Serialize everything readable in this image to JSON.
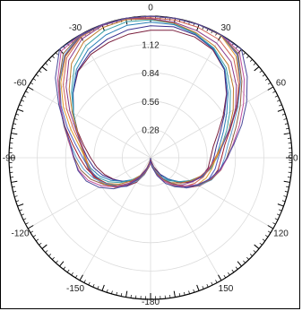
{
  "chart_data": {
    "type": "polar-line",
    "title": "",
    "angle_unit": "degrees",
    "angle_zero": "top",
    "angle_direction": "clockwise",
    "angle_tick_labels": [
      "0",
      "30",
      "60",
      "90",
      "120",
      "150",
      "-180",
      "-150",
      "-120",
      "-90",
      "-60",
      "-30"
    ],
    "angle_tick_values": [
      0,
      30,
      60,
      90,
      120,
      150,
      180,
      -150,
      -120,
      -90,
      -60,
      -30
    ],
    "r_range": [
      0,
      1.4
    ],
    "r_ticks": [
      0.28,
      0.56,
      0.84,
      1.12
    ],
    "r_tick_labels": [
      "0.28",
      "0.56",
      "0.84",
      "1.12"
    ],
    "grid": true,
    "legend": "none",
    "series_colors": [
      "#7a1f3d",
      "#3a2f8f",
      "#2a7fb8",
      "#3aa0a8",
      "#c07a2c",
      "#8a3a8a",
      "#d06050",
      "#e0a030",
      "#5060c0",
      "#a02030",
      "#60a0d0",
      "#906040",
      "#c050a0",
      "#4a4a9a"
    ],
    "series_template": {
      "angles": [
        -180,
        -170,
        -160,
        -150,
        -140,
        -130,
        -120,
        -110,
        -100,
        -90,
        -80,
        -70,
        -60,
        -50,
        -40,
        -30,
        -20,
        -10,
        0,
        10,
        20,
        30,
        40,
        50,
        60,
        70,
        80,
        90,
        100,
        110,
        120,
        130,
        140,
        150,
        160,
        170,
        180
      ],
      "radii": [
        0.02,
        0.06,
        0.14,
        0.24,
        0.33,
        0.42,
        0.5,
        0.57,
        0.62,
        0.66,
        0.72,
        0.82,
        0.95,
        1.1,
        1.25,
        1.34,
        1.38,
        1.4,
        1.4,
        1.4,
        1.38,
        1.34,
        1.25,
        1.1,
        0.95,
        0.82,
        0.72,
        0.66,
        0.62,
        0.57,
        0.5,
        0.42,
        0.33,
        0.24,
        0.14,
        0.06,
        0.02
      ]
    },
    "series_count": 14
  }
}
